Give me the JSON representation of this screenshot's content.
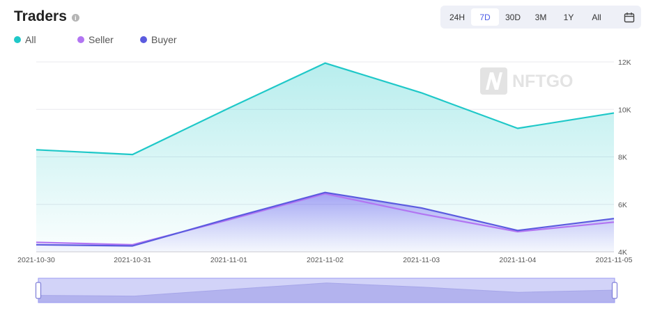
{
  "header": {
    "title": "Traders",
    "info_icon": "info-icon"
  },
  "legend": [
    {
      "label": "All",
      "color": "#1fc8c8"
    },
    {
      "label": "Seller",
      "color": "#b275f2"
    },
    {
      "label": "Buyer",
      "color": "#5b5bdf"
    }
  ],
  "ranges": {
    "options": [
      "24H",
      "7D",
      "30D",
      "3M",
      "1Y",
      "All"
    ],
    "selected": "7D",
    "calendar_icon": "calendar-icon"
  },
  "watermark": "NFTGO",
  "chart_data": {
    "type": "line",
    "x": [
      "2021-10-30",
      "2021-10-31",
      "2021-11-01",
      "2021-11-02",
      "2021-11-03",
      "2021-11-04",
      "2021-11-05"
    ],
    "y_ticks": [
      "4K",
      "6K",
      "8K",
      "10K",
      "12K"
    ],
    "ylim": [
      4000,
      12000
    ],
    "y_axis_position": "right",
    "grid": true,
    "legend_position": "top-left",
    "series": [
      {
        "name": "All",
        "color": "#1fc8c8",
        "fill": "area",
        "values": [
          8300,
          8100,
          10050,
          11950,
          10700,
          9200,
          9850
        ]
      },
      {
        "name": "Seller",
        "color": "#b275f2",
        "fill": "none",
        "values": [
          4400,
          4300,
          5350,
          6450,
          5600,
          4850,
          5250
        ]
      },
      {
        "name": "Buyer",
        "color": "#5b5bdf",
        "fill": "area",
        "values": [
          4300,
          4250,
          5400,
          6500,
          5850,
          4900,
          5400
        ]
      }
    ],
    "zoom_slider": {
      "start": 0,
      "end": 1
    }
  }
}
